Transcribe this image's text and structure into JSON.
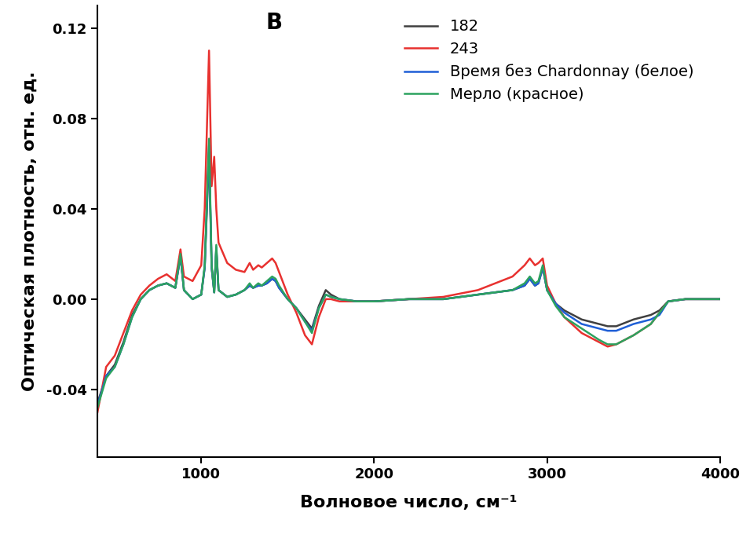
{
  "chart_data": {
    "type": "line",
    "annotations": [
      "В"
    ],
    "x_label": "Волновое число, см⁻¹",
    "y_label": "Оптическая плотность, отн. ед.",
    "x": [
      400,
      450,
      500,
      550,
      600,
      650,
      700,
      750,
      800,
      850,
      880,
      900,
      950,
      1000,
      1020,
      1045,
      1060,
      1075,
      1087,
      1100,
      1150,
      1200,
      1250,
      1280,
      1300,
      1330,
      1350,
      1380,
      1410,
      1430,
      1450,
      1500,
      1550,
      1600,
      1640,
      1680,
      1720,
      1750,
      1800,
      1900,
      2000,
      2200,
      2400,
      2600,
      2800,
      2870,
      2900,
      2930,
      2950,
      2975,
      3000,
      3050,
      3100,
      3200,
      3300,
      3350,
      3400,
      3500,
      3600,
      3650,
      3700,
      3800,
      4000
    ],
    "series": [
      {
        "name": "182",
        "color": "#404040",
        "values": [
          -0.046,
          -0.034,
          -0.029,
          -0.019,
          -0.007,
          0.0,
          0.004,
          0.006,
          0.007,
          0.005,
          0.019,
          0.004,
          0.0,
          0.002,
          0.014,
          0.065,
          0.014,
          0.003,
          0.022,
          0.004,
          0.001,
          0.002,
          0.004,
          0.006,
          0.005,
          0.006,
          0.006,
          0.007,
          0.009,
          0.008,
          0.005,
          0.0,
          -0.004,
          -0.009,
          -0.013,
          -0.003,
          0.004,
          0.002,
          0.0,
          -0.001,
          -0.001,
          0.0,
          0.0,
          0.002,
          0.004,
          0.006,
          0.009,
          0.006,
          0.007,
          0.014,
          0.004,
          -0.002,
          -0.005,
          -0.009,
          -0.011,
          -0.012,
          -0.012,
          -0.009,
          -0.007,
          -0.005,
          -0.001,
          0.0,
          0.0
        ]
      },
      {
        "name": "243",
        "color": "#e8312f",
        "values": [
          -0.05,
          -0.03,
          -0.025,
          -0.015,
          -0.005,
          0.002,
          0.006,
          0.009,
          0.011,
          0.008,
          0.022,
          0.01,
          0.008,
          0.015,
          0.04,
          0.11,
          0.05,
          0.063,
          0.04,
          0.025,
          0.016,
          0.013,
          0.012,
          0.016,
          0.013,
          0.015,
          0.014,
          0.016,
          0.018,
          0.016,
          0.012,
          0.002,
          -0.006,
          -0.016,
          -0.02,
          -0.008,
          0.0,
          0.0,
          -0.001,
          -0.001,
          -0.001,
          0.0,
          0.001,
          0.004,
          0.01,
          0.015,
          0.018,
          0.015,
          0.016,
          0.018,
          0.006,
          -0.002,
          -0.008,
          -0.015,
          -0.019,
          -0.021,
          -0.02,
          -0.016,
          -0.011,
          -0.006,
          -0.001,
          0.0,
          0.0
        ]
      },
      {
        "name": "Время без Chardonnay (белое)",
        "color": "#1f5fd6",
        "values": [
          -0.047,
          -0.034,
          -0.03,
          -0.02,
          -0.008,
          0.0,
          0.004,
          0.006,
          0.007,
          0.005,
          0.019,
          0.004,
          0.0,
          0.002,
          0.014,
          0.068,
          0.014,
          0.003,
          0.023,
          0.004,
          0.001,
          0.002,
          0.004,
          0.006,
          0.005,
          0.006,
          0.006,
          0.007,
          0.009,
          0.008,
          0.005,
          0.0,
          -0.004,
          -0.01,
          -0.014,
          -0.004,
          0.002,
          0.001,
          0.0,
          -0.001,
          -0.001,
          0.0,
          0.0,
          0.002,
          0.004,
          0.006,
          0.009,
          0.006,
          0.007,
          0.014,
          0.004,
          -0.002,
          -0.006,
          -0.011,
          -0.013,
          -0.014,
          -0.014,
          -0.011,
          -0.009,
          -0.007,
          -0.001,
          0.0,
          0.0
        ]
      },
      {
        "name": "Мерло (красное)",
        "color": "#2ca25f",
        "values": [
          -0.048,
          -0.035,
          -0.03,
          -0.02,
          -0.008,
          0.0,
          0.004,
          0.006,
          0.007,
          0.005,
          0.02,
          0.004,
          0.0,
          0.002,
          0.015,
          0.071,
          0.015,
          0.003,
          0.024,
          0.004,
          0.001,
          0.002,
          0.004,
          0.007,
          0.005,
          0.007,
          0.006,
          0.008,
          0.01,
          0.009,
          0.006,
          0.0,
          -0.004,
          -0.01,
          -0.015,
          -0.004,
          0.002,
          0.001,
          0.0,
          -0.001,
          -0.001,
          0.0,
          0.0,
          0.002,
          0.004,
          0.007,
          0.01,
          0.007,
          0.008,
          0.015,
          0.004,
          -0.003,
          -0.008,
          -0.013,
          -0.018,
          -0.02,
          -0.02,
          -0.016,
          -0.011,
          -0.006,
          -0.001,
          0.0,
          0.0
        ]
      }
    ],
    "xlim": [
      400,
      4000
    ],
    "xticks": [
      1000,
      2000,
      3000,
      4000
    ],
    "ylim": [
      -0.07,
      0.13
    ],
    "yticks": [
      -0.04,
      {
        "value": 0,
        "label": "0.00"
      },
      0.04,
      0.08,
      0.12
    ],
    "grid": false,
    "legend": "upper right"
  }
}
